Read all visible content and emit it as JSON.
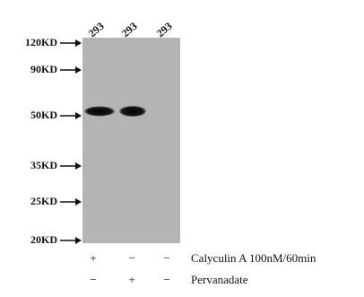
{
  "lanes": [
    "293",
    "293",
    "293"
  ],
  "markers": [
    "120KD",
    "90KD",
    "50KD",
    "35KD",
    "25KD",
    "20KD"
  ],
  "treatments": [
    {
      "signs": [
        "+",
        "−",
        "−"
      ],
      "label": "Calyculin A 100nM/60min"
    },
    {
      "signs": [
        "−",
        "+",
        "−"
      ],
      "label": "Pervanadate"
    }
  ]
}
